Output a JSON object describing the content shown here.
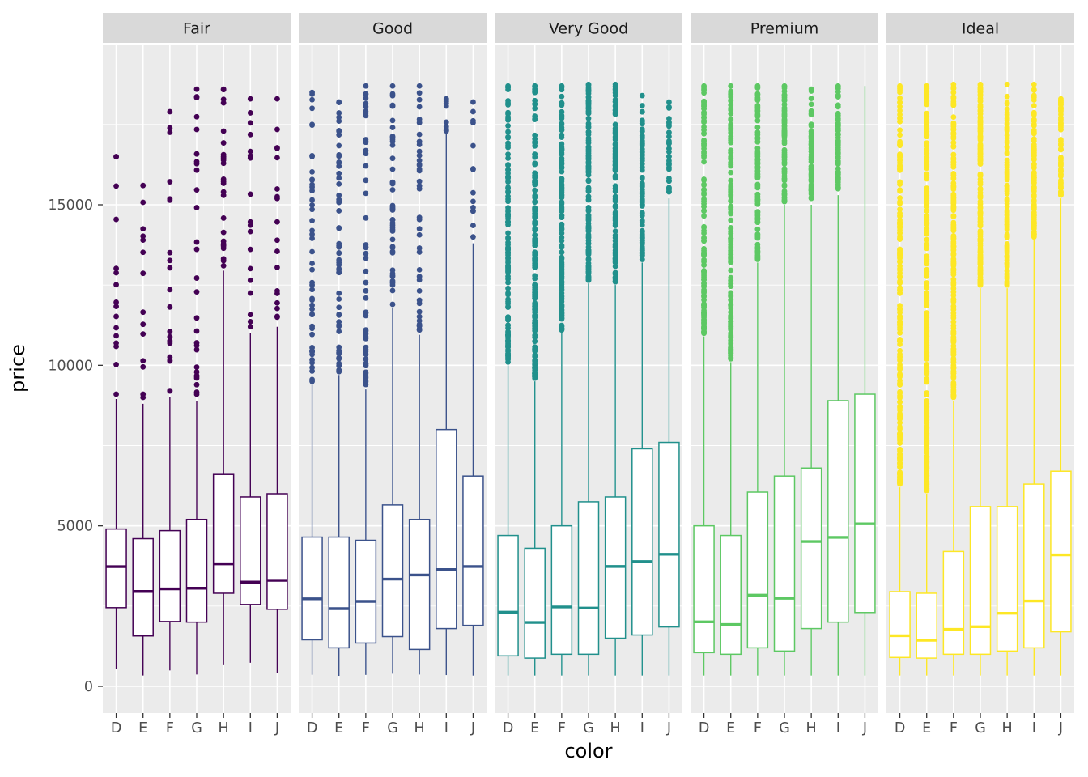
{
  "chart_data": {
    "type": "boxplot",
    "title": "",
    "facet_labels": [
      "Fair",
      "Good",
      "Very Good",
      "Premium",
      "Ideal"
    ],
    "x": {
      "label": "color",
      "categories": [
        "D",
        "E",
        "F",
        "G",
        "H",
        "I",
        "J"
      ]
    },
    "y": {
      "label": "price",
      "ticks": [
        0,
        5000,
        10000,
        15000
      ],
      "minor_ticks": [
        2500,
        7500,
        12500,
        17500
      ],
      "display_max": 19950
    },
    "style": {
      "panel_bg": "#EBEBEB",
      "strip_bg": "#D9D9D9",
      "grid_color": "#FFFFFF",
      "axis_text_color": "#4D4D4D",
      "tick_mark_color": "#333333",
      "strip_text_color": "#1A1A1A",
      "box_fill": "#FFFFFF"
    },
    "facets": [
      {
        "label": "Fair",
        "color": "#440154",
        "boxes": [
          {
            "category": "D",
            "whisker_min": 536,
            "q1": 2450,
            "median": 3730,
            "q3": 4900,
            "whisker_max": 8950,
            "outliers": {
              "count": 14,
              "min": 9100,
              "max": 16500
            }
          },
          {
            "category": "E",
            "whisker_min": 337,
            "q1": 1570,
            "median": 2956,
            "q3": 4600,
            "whisker_max": 8800,
            "outliers": {
              "count": 12,
              "min": 9000,
              "max": 15600
            }
          },
          {
            "category": "F",
            "whisker_min": 496,
            "q1": 2020,
            "median": 3035,
            "q3": 4850,
            "whisker_max": 9000,
            "outliers": {
              "count": 18,
              "min": 9200,
              "max": 17900
            }
          },
          {
            "category": "G",
            "whisker_min": 369,
            "q1": 2000,
            "median": 3057,
            "q3": 5200,
            "whisker_max": 8900,
            "outliers": {
              "count": 26,
              "min": 9100,
              "max": 18600
            }
          },
          {
            "category": "H",
            "whisker_min": 659,
            "q1": 2900,
            "median": 3816,
            "q3": 6600,
            "whisker_max": 12950,
            "outliers": {
              "count": 24,
              "min": 13100,
              "max": 18600
            }
          },
          {
            "category": "I",
            "whisker_min": 735,
            "q1": 2550,
            "median": 3246,
            "q3": 5900,
            "whisker_max": 11000,
            "outliers": {
              "count": 16,
              "min": 11200,
              "max": 18300
            }
          },
          {
            "category": "J",
            "whisker_min": 416,
            "q1": 2400,
            "median": 3302,
            "q3": 6000,
            "whisker_max": 11200,
            "outliers": {
              "count": 16,
              "min": 11500,
              "max": 18300
            }
          }
        ]
      },
      {
        "label": "Good",
        "color": "#3B528B",
        "boxes": [
          {
            "category": "D",
            "whisker_min": 361,
            "q1": 1450,
            "median": 2728,
            "q3": 4650,
            "whisker_max": 9400,
            "outliers": {
              "count": 45,
              "min": 9500,
              "max": 18500
            }
          },
          {
            "category": "E",
            "whisker_min": 327,
            "q1": 1200,
            "median": 2420,
            "q3": 4650,
            "whisker_max": 9700,
            "outliers": {
              "count": 55,
              "min": 9800,
              "max": 18200
            }
          },
          {
            "category": "F",
            "whisker_min": 357,
            "q1": 1350,
            "median": 2647,
            "q3": 4550,
            "whisker_max": 9250,
            "outliers": {
              "count": 55,
              "min": 9400,
              "max": 18700
            }
          },
          {
            "category": "G",
            "whisker_min": 394,
            "q1": 1550,
            "median": 3340,
            "q3": 5650,
            "whisker_max": 11800,
            "outliers": {
              "count": 45,
              "min": 11900,
              "max": 18700
            }
          },
          {
            "category": "H",
            "whisker_min": 368,
            "q1": 1150,
            "median": 3468,
            "q3": 5200,
            "whisker_max": 10950,
            "outliers": {
              "count": 40,
              "min": 11100,
              "max": 18700
            }
          },
          {
            "category": "I",
            "whisker_min": 351,
            "q1": 1800,
            "median": 3639,
            "q3": 8000,
            "whisker_max": 17200,
            "outliers": {
              "count": 8,
              "min": 17300,
              "max": 18300
            }
          },
          {
            "category": "J",
            "whisker_min": 335,
            "q1": 1900,
            "median": 3733,
            "q3": 6550,
            "whisker_max": 13800,
            "outliers": {
              "count": 12,
              "min": 14000,
              "max": 18200
            }
          }
        ]
      },
      {
        "label": "Very Good",
        "color": "#21908C",
        "boxes": [
          {
            "category": "D",
            "whisker_min": 336,
            "q1": 950,
            "median": 2310,
            "q3": 4700,
            "whisker_max": 10000,
            "outliers": {
              "count": 120,
              "min": 10100,
              "max": 18700
            }
          },
          {
            "category": "E",
            "whisker_min": 336,
            "q1": 880,
            "median": 1990,
            "q3": 4300,
            "whisker_max": 9500,
            "outliers": {
              "count": 150,
              "min": 9600,
              "max": 18700
            }
          },
          {
            "category": "F",
            "whisker_min": 336,
            "q1": 1000,
            "median": 2471,
            "q3": 5000,
            "whisker_max": 11000,
            "outliers": {
              "count": 140,
              "min": 11100,
              "max": 18700
            }
          },
          {
            "category": "G",
            "whisker_min": 336,
            "q1": 1000,
            "median": 2437,
            "q3": 5750,
            "whisker_max": 12550,
            "outliers": {
              "count": 130,
              "min": 12650,
              "max": 18750
            }
          },
          {
            "category": "H",
            "whisker_min": 336,
            "q1": 1500,
            "median": 3734,
            "q3": 5900,
            "whisker_max": 12500,
            "outliers": {
              "count": 110,
              "min": 12600,
              "max": 18750
            }
          },
          {
            "category": "I",
            "whisker_min": 336,
            "q1": 1600,
            "median": 3888,
            "q3": 7400,
            "whisker_max": 13200,
            "outliers": {
              "count": 90,
              "min": 13300,
              "max": 18400
            }
          },
          {
            "category": "J",
            "whisker_min": 336,
            "q1": 1850,
            "median": 4113,
            "q3": 7600,
            "whisker_max": 15200,
            "outliers": {
              "count": 30,
              "min": 15400,
              "max": 18200
            }
          }
        ]
      },
      {
        "label": "Premium",
        "color": "#5DC863",
        "boxes": [
          {
            "category": "D",
            "whisker_min": 336,
            "q1": 1050,
            "median": 2009,
            "q3": 5000,
            "whisker_max": 10900,
            "outliers": {
              "count": 130,
              "min": 11000,
              "max": 18700
            }
          },
          {
            "category": "E",
            "whisker_min": 336,
            "q1": 1000,
            "median": 1928,
            "q3": 4700,
            "whisker_max": 10100,
            "outliers": {
              "count": 150,
              "min": 10200,
              "max": 18700
            }
          },
          {
            "category": "F",
            "whisker_min": 336,
            "q1": 1200,
            "median": 2841,
            "q3": 6050,
            "whisker_max": 13200,
            "outliers": {
              "count": 90,
              "min": 13300,
              "max": 18700
            }
          },
          {
            "category": "G",
            "whisker_min": 336,
            "q1": 1100,
            "median": 2745,
            "q3": 6550,
            "whisker_max": 15000,
            "outliers": {
              "count": 80,
              "min": 15100,
              "max": 18700
            }
          },
          {
            "category": "H",
            "whisker_min": 336,
            "q1": 1800,
            "median": 4511,
            "q3": 6800,
            "whisker_max": 15000,
            "outliers": {
              "count": 70,
              "min": 15200,
              "max": 18600
            }
          },
          {
            "category": "I",
            "whisker_min": 336,
            "q1": 2000,
            "median": 4640,
            "q3": 8900,
            "whisker_max": 15300,
            "outliers": {
              "count": 60,
              "min": 15500,
              "max": 18700
            }
          },
          {
            "category": "J",
            "whisker_min": 336,
            "q1": 2300,
            "median": 5063,
            "q3": 9100,
            "whisker_max": 18700,
            "outliers": {
              "count": 0,
              "min": 0,
              "max": 0
            }
          }
        ]
      },
      {
        "label": "Ideal",
        "color": "#FDE725",
        "boxes": [
          {
            "category": "D",
            "whisker_min": 336,
            "q1": 900,
            "median": 1576,
            "q3": 2950,
            "whisker_max": 6200,
            "outliers": {
              "count": 220,
              "min": 6300,
              "max": 18700
            }
          },
          {
            "category": "E",
            "whisker_min": 336,
            "q1": 880,
            "median": 1437,
            "q3": 2900,
            "whisker_max": 6000,
            "outliers": {
              "count": 230,
              "min": 6100,
              "max": 18700
            }
          },
          {
            "category": "F",
            "whisker_min": 336,
            "q1": 1000,
            "median": 1775,
            "q3": 4200,
            "whisker_max": 8900,
            "outliers": {
              "count": 180,
              "min": 9000,
              "max": 18750
            }
          },
          {
            "category": "G",
            "whisker_min": 336,
            "q1": 1000,
            "median": 1858,
            "q3": 5600,
            "whisker_max": 12400,
            "outliers": {
              "count": 150,
              "min": 12500,
              "max": 18750
            }
          },
          {
            "category": "H",
            "whisker_min": 336,
            "q1": 1100,
            "median": 2278,
            "q3": 5600,
            "whisker_max": 12400,
            "outliers": {
              "count": 130,
              "min": 12500,
              "max": 18750
            }
          },
          {
            "category": "I",
            "whisker_min": 336,
            "q1": 1200,
            "median": 2659,
            "q3": 6300,
            "whisker_max": 13900,
            "outliers": {
              "count": 110,
              "min": 14000,
              "max": 18750
            }
          },
          {
            "category": "J",
            "whisker_min": 336,
            "q1": 1700,
            "median": 4096,
            "q3": 6700,
            "whisker_max": 15200,
            "outliers": {
              "count": 60,
              "min": 15300,
              "max": 18300
            }
          }
        ]
      }
    ]
  }
}
